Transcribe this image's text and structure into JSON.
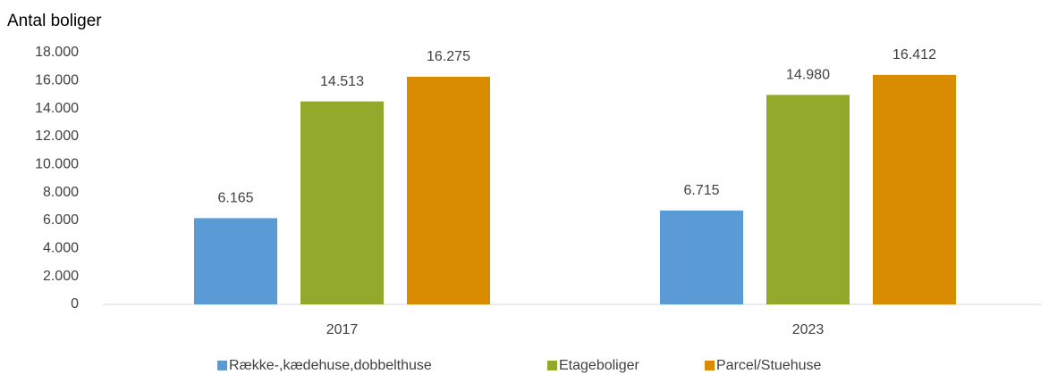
{
  "chart_data": {
    "type": "bar",
    "y_axis_label": "Antal boliger",
    "categories": [
      "2017",
      "2023"
    ],
    "series": [
      {
        "name": "Række-,kædehuse,dobbelthuse",
        "color": "#5b9bd5",
        "values": [
          6165,
          6715
        ],
        "value_labels": [
          "6.165",
          "6.715"
        ]
      },
      {
        "name": "Etageboliger",
        "color": "#92a92b",
        "values": [
          14513,
          14980
        ],
        "value_labels": [
          "14.513",
          "14.980"
        ]
      },
      {
        "name": "Parcel/Stuehuse",
        "color": "#d98c00",
        "values": [
          16275,
          16412
        ],
        "value_labels": [
          "16.275",
          "16.412"
        ]
      }
    ],
    "ylim": [
      0,
      18000
    ],
    "yticks": [
      0,
      {
        "value": 2000,
        "label": "2.000"
      },
      {
        "value": 4000,
        "label": "4.000"
      },
      {
        "value": 6000,
        "label": "6.000"
      },
      {
        "value": 8000,
        "label": "8.000"
      },
      {
        "value": 10000,
        "label": "10.000"
      },
      {
        "value": 12000,
        "label": "12.000"
      },
      {
        "value": 14000,
        "label": "14.000"
      },
      {
        "value": 16000,
        "label": "16.000"
      },
      {
        "value": 18000,
        "label": "18.000"
      }
    ],
    "grid": false,
    "legend": "bottom"
  }
}
